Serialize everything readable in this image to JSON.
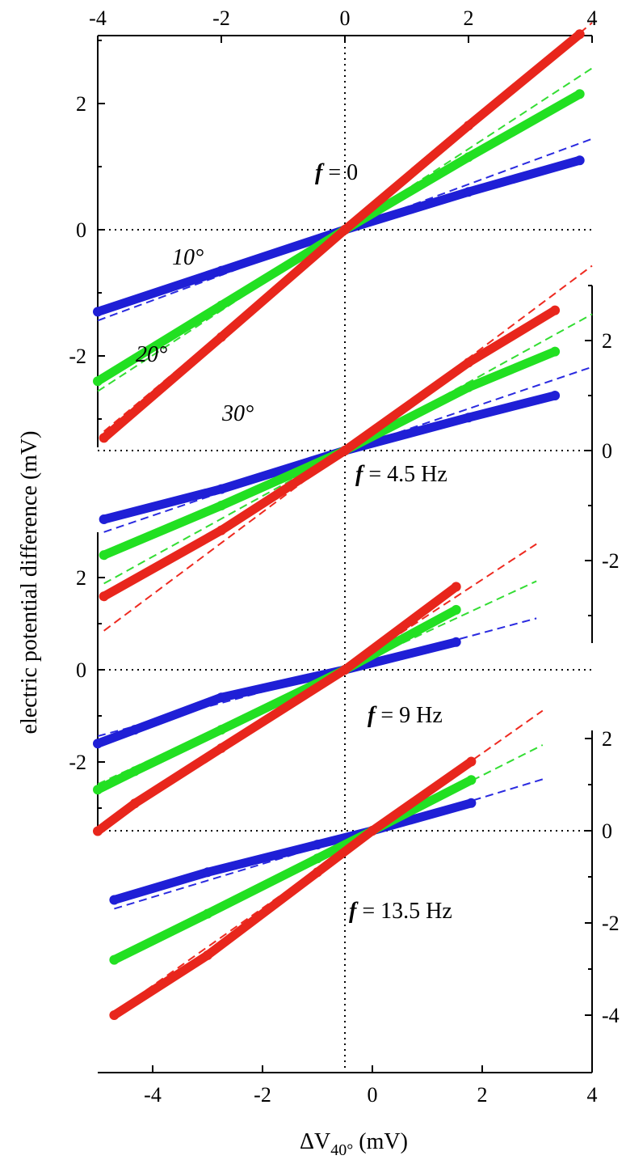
{
  "chart_data": {
    "type": "scatter",
    "xlabel": "ΔV40° (mV)",
    "xlabel_main": "ΔV",
    "xlabel_sub": "40°",
    "xlabel_unit": " (mV)",
    "ylabel": "electric potential difference (mV)",
    "top_axis": {
      "xlim": [
        -4,
        4
      ],
      "ticks": [
        -4,
        -2,
        0,
        2,
        4
      ]
    },
    "bottom_axis": {
      "xlim": [
        -5,
        4
      ],
      "ticks": [
        -4,
        -2,
        0,
        2,
        4
      ]
    },
    "colors": {
      "10°": "#1f1fd6",
      "20°": "#22e022",
      "30°": "#e8261c"
    },
    "panels": [
      {
        "id": "f0",
        "label_prefix": "f",
        "label_value": " = 0",
        "y_axis_side": "left",
        "yticks": [
          2,
          0,
          -2
        ],
        "ylim": [
          -3.6,
          3
        ],
        "xlim": [
          -4,
          4
        ],
        "angle_labels": [
          "10°",
          "20°",
          "30°"
        ],
        "series": [
          {
            "name": "10°",
            "x": [
              -4.0,
              -2.0,
              0.0,
              2.0,
              3.8
            ],
            "y": [
              -1.3,
              -0.65,
              0.0,
              0.6,
              1.1
            ],
            "fit_slope": 0.36
          },
          {
            "name": "20°",
            "x": [
              -4.0,
              -2.0,
              0.0,
              2.0,
              3.8
            ],
            "y": [
              -2.4,
              -1.2,
              0.0,
              1.15,
              2.15
            ],
            "fit_slope": 0.64
          },
          {
            "name": "30°",
            "x": [
              -3.9,
              -2.0,
              0.0,
              2.0,
              3.8
            ],
            "y": [
              -3.3,
              -1.7,
              0.0,
              1.65,
              3.1
            ],
            "fit_slope": 0.82
          }
        ]
      },
      {
        "id": "f45",
        "label_prefix": "f",
        "label_value": " = 4.5 Hz",
        "y_axis_side": "right",
        "yticks": [
          2,
          0,
          -2
        ],
        "ylim": [
          -3.4,
          3
        ],
        "xlim": [
          -4,
          4
        ],
        "series": [
          {
            "name": "10°",
            "x": [
              -3.9,
              -2.0,
              0.0,
              2.0,
              3.4
            ],
            "y": [
              -1.25,
              -0.7,
              0.0,
              0.6,
              1.0
            ],
            "fit_slope": 0.38
          },
          {
            "name": "20°",
            "x": [
              -3.9,
              -2.0,
              0.0,
              2.0,
              3.4
            ],
            "y": [
              -1.9,
              -1.0,
              0.0,
              1.15,
              1.8
            ],
            "fit_slope": 0.62
          },
          {
            "name": "30°",
            "x": [
              -3.9,
              -2.0,
              0.0,
              2.0,
              3.4
            ],
            "y": [
              -2.65,
              -1.45,
              0.0,
              1.6,
              2.55
            ],
            "fit_slope": 0.84
          }
        ]
      },
      {
        "id": "f9",
        "label_prefix": "f",
        "label_value": " = 9 Hz",
        "y_axis_side": "left",
        "yticks": [
          2,
          0,
          -2
        ],
        "ylim": [
          -3.6,
          3
        ],
        "xlim": [
          -4,
          4
        ],
        "series": [
          {
            "name": "10°",
            "x": [
              -4.0,
              -3.4,
              -2.0,
              0.0,
              1.8
            ],
            "y": [
              -1.6,
              -1.3,
              -0.6,
              0.0,
              0.6
            ],
            "fit_slope": 0.36
          },
          {
            "name": "20°",
            "x": [
              -4.0,
              -3.4,
              -2.0,
              0.0,
              1.8
            ],
            "y": [
              -2.6,
              -2.2,
              -1.3,
              0.0,
              1.3
            ],
            "fit_slope": 0.62
          },
          {
            "name": "30°",
            "x": [
              -4.0,
              -3.4,
              -2.0,
              0.0,
              1.8
            ],
            "y": [
              -3.5,
              -2.9,
              -1.7,
              0.0,
              1.8
            ],
            "fit_slope": 0.88
          }
        ]
      },
      {
        "id": "f135",
        "label_prefix": "f",
        "label_value": " = 13.5 Hz",
        "y_axis_side": "right",
        "yticks": [
          2,
          0,
          -2,
          -4
        ],
        "ylim": [
          -4.3,
          2
        ],
        "xlim": [
          -5,
          4
        ],
        "series": [
          {
            "name": "10°",
            "x": [
              -4.7,
              -3.0,
              -1.0,
              0.0,
              1.8
            ],
            "y": [
              -1.5,
              -0.9,
              -0.3,
              0.0,
              0.6
            ],
            "fit_slope": 0.36
          },
          {
            "name": "20°",
            "x": [
              -4.7,
              -3.0,
              -1.0,
              0.0,
              1.8
            ],
            "y": [
              -2.8,
              -1.8,
              -0.6,
              0.0,
              1.1
            ],
            "fit_slope": 0.6
          },
          {
            "name": "30°",
            "x": [
              -4.7,
              -3.0,
              -1.0,
              0.0,
              1.8
            ],
            "y": [
              -4.0,
              -2.7,
              -0.9,
              0.0,
              1.5
            ],
            "fit_slope": 0.84
          }
        ]
      }
    ]
  }
}
